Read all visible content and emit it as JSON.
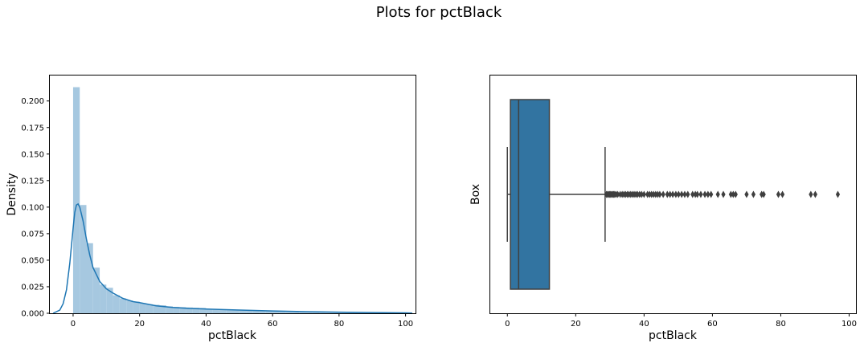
{
  "figure": {
    "suptitle": "Plots for pctBlack"
  },
  "chart_data": [
    {
      "type": "histogram",
      "xlabel": "pctBlack",
      "ylabel": "Density",
      "xlim": [
        -7,
        103
      ],
      "ylim": [
        0,
        0.224
      ],
      "x_ticks": [
        0,
        20,
        40,
        60,
        80,
        100
      ],
      "y_ticks": [
        0.0,
        0.025,
        0.05,
        0.075,
        0.1,
        0.125,
        0.15,
        0.175,
        0.2
      ],
      "y_tick_labels": [
        "0.000",
        "0.025",
        "0.050",
        "0.075",
        "0.100",
        "0.125",
        "0.150",
        "0.175",
        "0.200"
      ],
      "bar_color": "#a6c8e0",
      "kde_color": "#1f77b4",
      "bins": {
        "start": 0,
        "width": 2,
        "values": [
          0.213,
          0.102,
          0.066,
          0.043,
          0.027,
          0.024,
          0.017,
          0.014,
          0.012,
          0.011,
          0.0095,
          0.0085,
          0.008,
          0.0075,
          0.0065,
          0.006,
          0.0058,
          0.0055,
          0.0052,
          0.005,
          0.0042,
          0.0038,
          0.0035,
          0.0033,
          0.003,
          0.0028,
          0.0026,
          0.0024,
          0.0022,
          0.0021,
          0.0018,
          0.0015,
          0.0013,
          0.0011,
          0.001,
          0.0009,
          0.0008,
          0.0007,
          0.0006,
          0.0006,
          0.0005,
          0.0005,
          0.0004,
          0.0004,
          0.0004,
          0.0003,
          0.0003,
          0.0002,
          0.0002,
          0.0002
        ]
      },
      "kde": {
        "x": [
          -6,
          -4,
          -3,
          -2,
          -1,
          0,
          0.5,
          1,
          1.5,
          2,
          3,
          4,
          5,
          6,
          8,
          10,
          12,
          15,
          18,
          20,
          25,
          30,
          35,
          40,
          50,
          60,
          70,
          80,
          90,
          100,
          102
        ],
        "y": [
          0.0,
          0.003,
          0.009,
          0.022,
          0.047,
          0.08,
          0.095,
          0.102,
          0.103,
          0.1,
          0.087,
          0.07,
          0.055,
          0.043,
          0.03,
          0.023,
          0.019,
          0.014,
          0.011,
          0.01,
          0.007,
          0.0055,
          0.0045,
          0.004,
          0.003,
          0.0022,
          0.0015,
          0.001,
          0.0007,
          0.0004,
          0.0002
        ]
      }
    },
    {
      "type": "boxplot",
      "xlabel": "pctBlack",
      "ylabel": "Box",
      "xlim": [
        -5,
        102
      ],
      "x_ticks": [
        0,
        20,
        40,
        60,
        80,
        100
      ],
      "box_color": "#3274a1",
      "line_color": "#3f3f3f",
      "stats": {
        "whislo": 0.0,
        "q1": 0.9,
        "med": 3.3,
        "q3": 12.3,
        "whishi": 28.6
      },
      "fliers": [
        29.0,
        29.3,
        29.6,
        29.9,
        30.2,
        30.5,
        30.8,
        31.1,
        31.4,
        31.8,
        32.3,
        33.0,
        33.6,
        34.1,
        34.6,
        35.1,
        35.6,
        36.1,
        36.6,
        37.1,
        37.6,
        38.1,
        38.7,
        39.3,
        40.0,
        41.0,
        41.6,
        42.2,
        42.8,
        43.4,
        44.0,
        44.6,
        45.6,
        46.8,
        47.6,
        48.4,
        49.3,
        50.1,
        51.0,
        51.9,
        52.8,
        54.2,
        55.0,
        55.6,
        56.6,
        57.8,
        58.7,
        59.6,
        61.6,
        63.2,
        65.4,
        66.1,
        66.8,
        70.0,
        72.0,
        74.4,
        75.0,
        79.3,
        80.5,
        88.8,
        90.1,
        96.7
      ]
    }
  ]
}
